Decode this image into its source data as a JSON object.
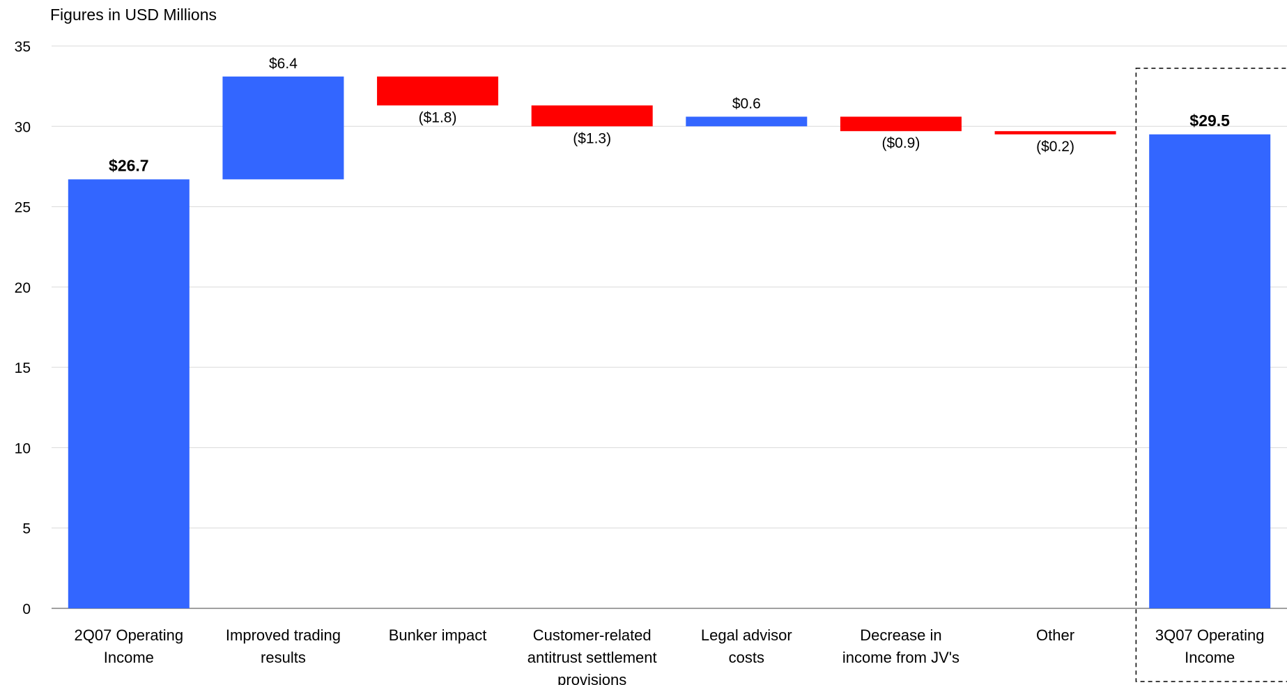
{
  "chart_data": {
    "type": "bar",
    "subtype": "waterfall",
    "unit_note": "Figures in USD Millions",
    "ylim": [
      0,
      35
    ],
    "yticks": [
      0,
      5,
      10,
      15,
      20,
      25,
      30,
      35
    ],
    "grid": true,
    "steps": [
      {
        "category": [
          "2Q07 Operating",
          "Income"
        ],
        "kind": "total",
        "value": 26.7,
        "label": "$26.7",
        "bold": true
      },
      {
        "category": [
          "Improved trading",
          "results"
        ],
        "kind": "delta",
        "value": 6.4,
        "label": "$6.4"
      },
      {
        "category": [
          "Bunker impact"
        ],
        "kind": "delta",
        "value": -1.8,
        "label": "($1.8)"
      },
      {
        "category": [
          "Customer-related",
          "antitrust settlement",
          "provisions"
        ],
        "kind": "delta",
        "value": -1.3,
        "label": "($1.3)"
      },
      {
        "category": [
          "Legal advisor",
          "costs"
        ],
        "kind": "delta",
        "value": 0.6,
        "label": "$0.6"
      },
      {
        "category": [
          "Decrease in",
          "income from JV's"
        ],
        "kind": "delta",
        "value": -0.9,
        "label": "($0.9)"
      },
      {
        "category": [
          "Other"
        ],
        "kind": "delta",
        "value": -0.2,
        "label": "($0.2)"
      },
      {
        "category": [
          "3Q07 Operating",
          "Income"
        ],
        "kind": "total",
        "value": 29.5,
        "label": "$29.5",
        "bold": true,
        "highlighted": true
      }
    ],
    "colors": {
      "increase": "#3366FF",
      "decrease": "#FF0000",
      "total": "#3366FF"
    }
  }
}
